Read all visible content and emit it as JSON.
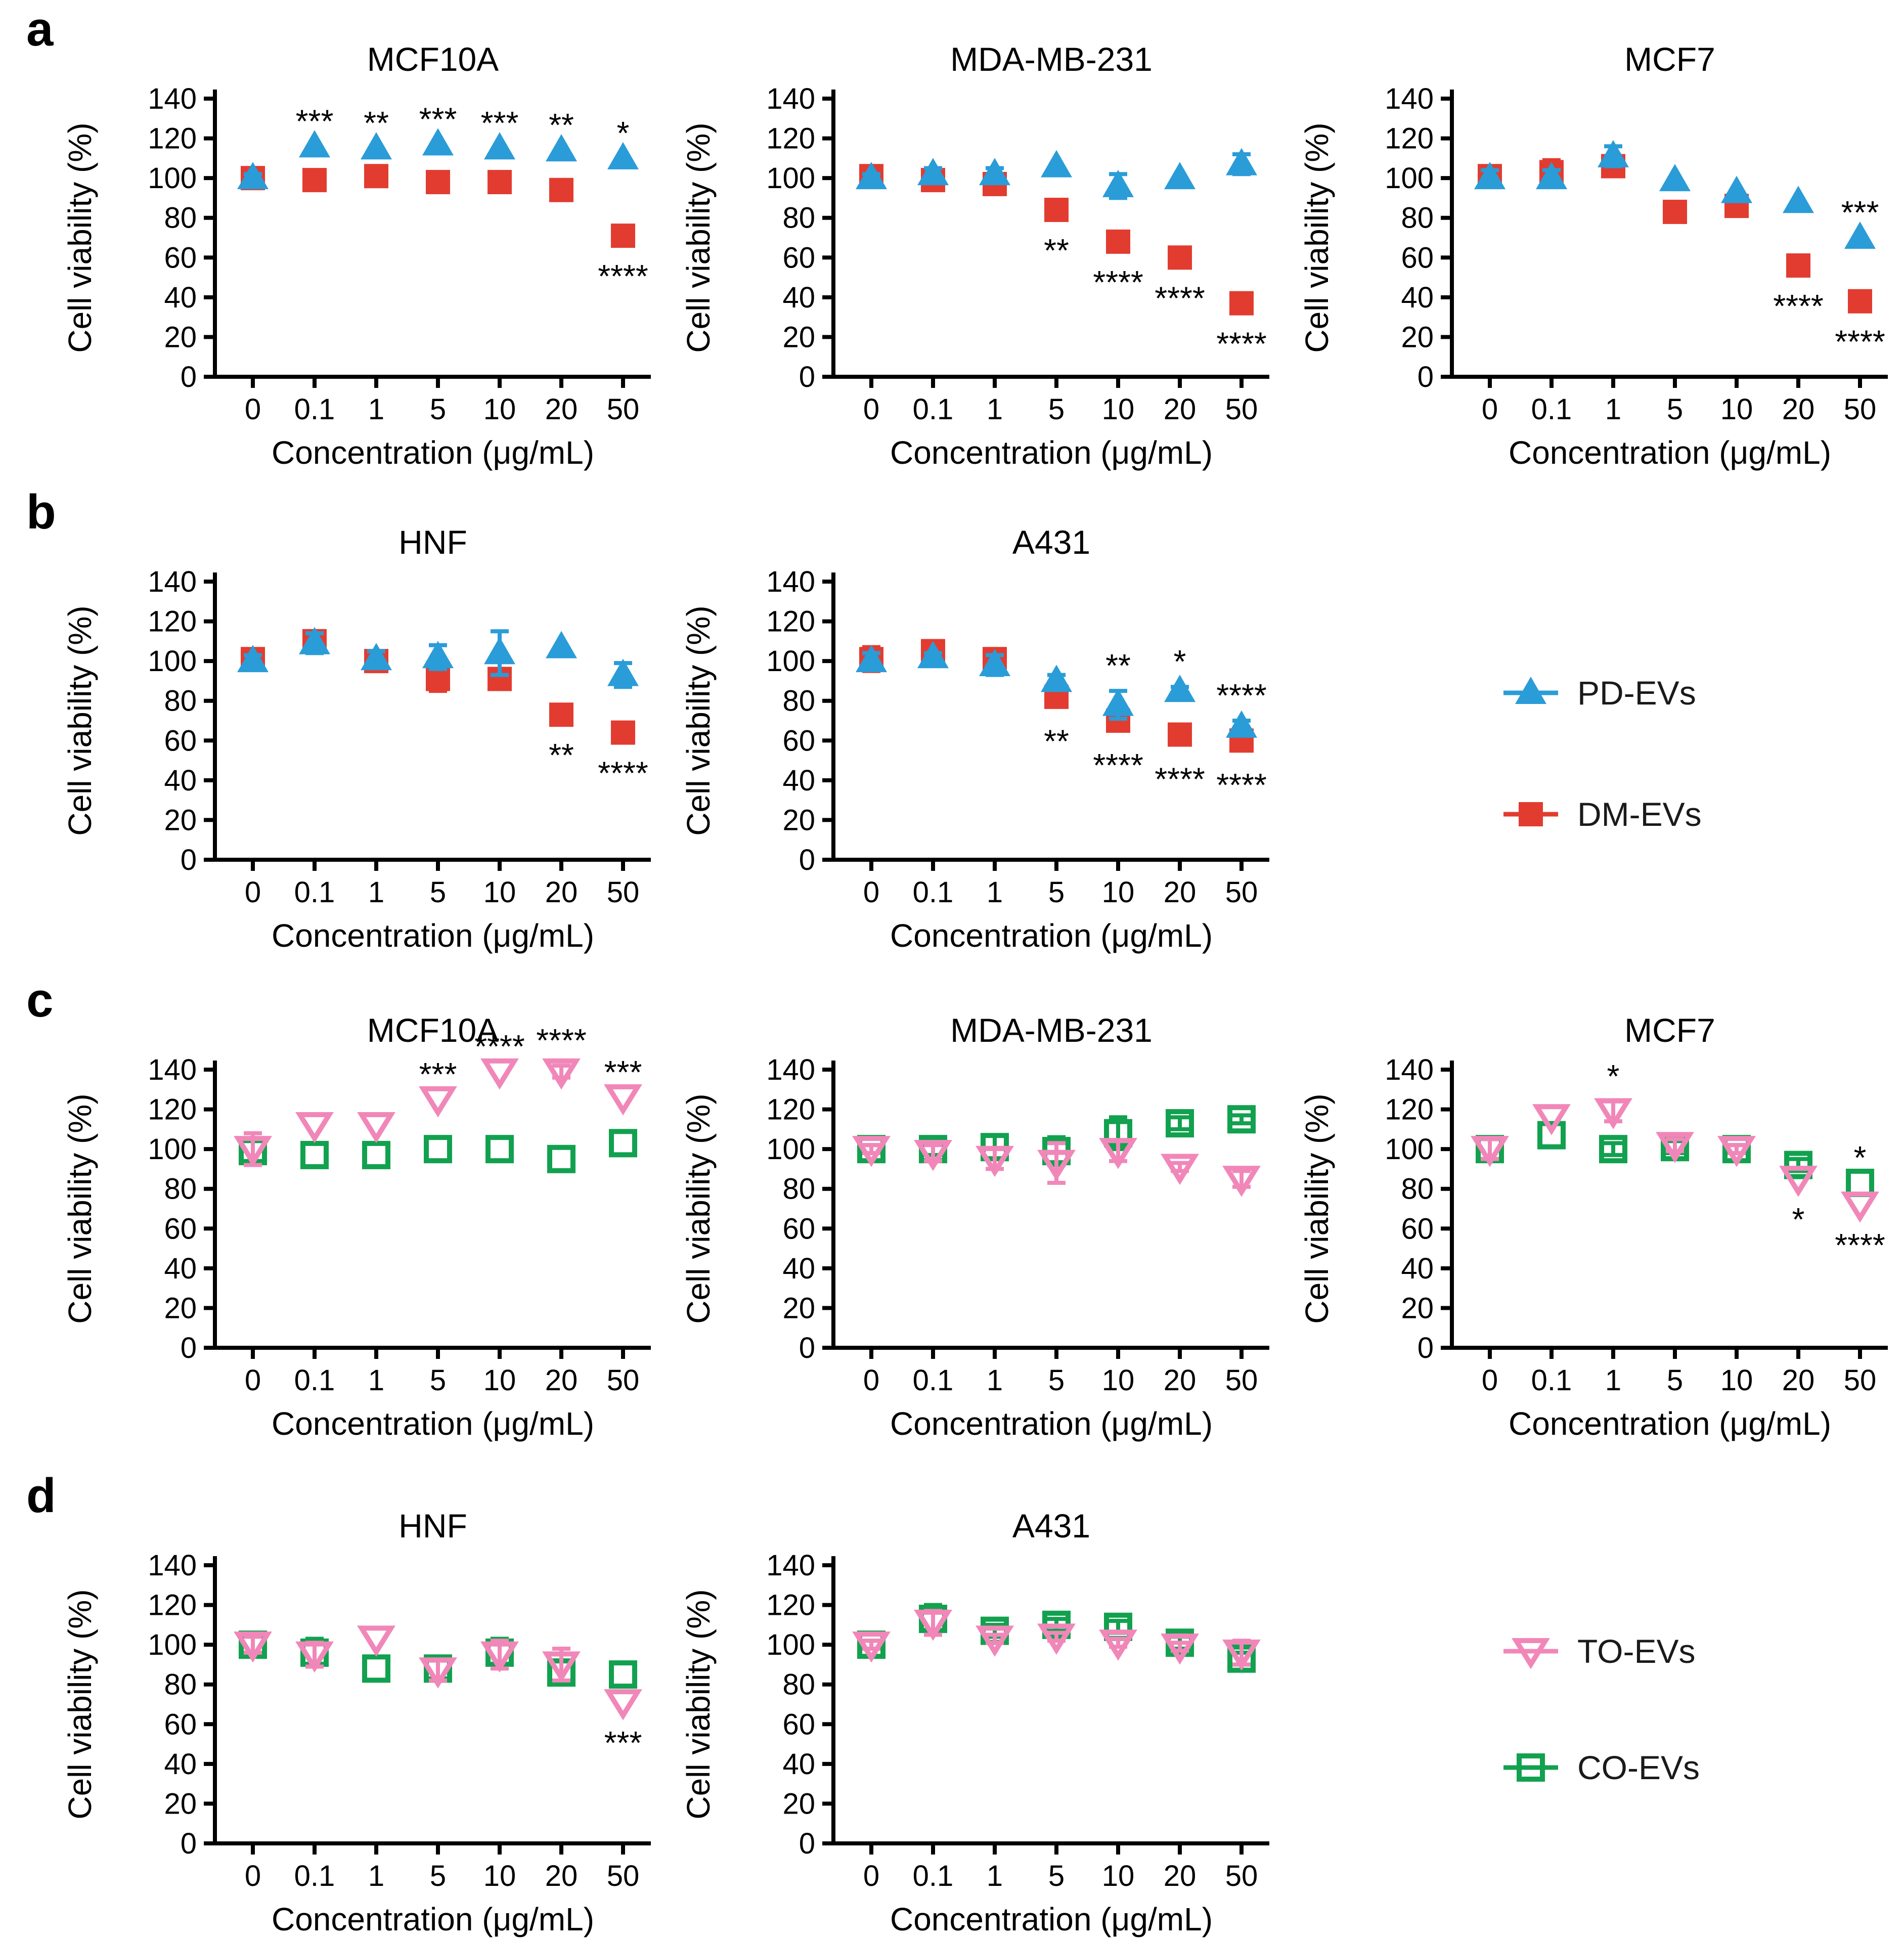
{
  "letters": {
    "a": "a",
    "b": "b",
    "c": "c",
    "d": "d"
  },
  "colors": {
    "pd_blue": "#2A9CD8",
    "dm_red": "#E23C30",
    "to_pink": "#F187B9",
    "co_green": "#12A14F",
    "axis_black": "#000000",
    "background": "#ffffff"
  },
  "legends": [
    {
      "row": "b",
      "items": [
        {
          "label": "PD-EVs",
          "marker": "triangle-filled",
          "color": "#2A9CD8"
        },
        {
          "label": "DM-EVs",
          "marker": "square-filled",
          "color": "#E23C30"
        }
      ]
    },
    {
      "row": "d",
      "items": [
        {
          "label": "TO-EVs",
          "marker": "triangle-open",
          "color": "#F187B9"
        },
        {
          "label": "CO-EVs",
          "marker": "square-open",
          "color": "#12A14F"
        }
      ]
    }
  ],
  "chart_data": [
    {
      "row": "a",
      "type": "scatter",
      "title": "MCF10A",
      "xlabel": "Concentration (μg/mL)",
      "ylabel": "Cell viability (%)",
      "categories": [
        "0",
        "0.1",
        "1",
        "5",
        "10",
        "20",
        "50"
      ],
      "ylim": [
        0,
        140
      ],
      "yticks": [
        0,
        20,
        40,
        60,
        80,
        100,
        120,
        140
      ],
      "series": [
        {
          "name": "PD-EVs",
          "marker": "triangle-filled",
          "color": "#2A9CD8",
          "values": [
            100,
            116,
            115,
            117,
            115,
            114,
            110
          ],
          "errors": [
            2,
            0,
            0,
            0,
            0,
            0,
            0
          ]
        },
        {
          "name": "DM-EVs",
          "marker": "square-filled",
          "color": "#E23C30",
          "values": [
            100,
            99,
            101,
            98,
            98,
            94,
            71
          ],
          "errors": [
            3,
            0,
            0,
            4,
            2,
            0,
            0
          ]
        }
      ],
      "annotations": [
        {
          "series": 0,
          "index": 1,
          "text": "***",
          "side": "above"
        },
        {
          "series": 0,
          "index": 2,
          "text": "**",
          "side": "above"
        },
        {
          "series": 0,
          "index": 3,
          "text": "***",
          "side": "above"
        },
        {
          "series": 0,
          "index": 4,
          "text": "***",
          "side": "above"
        },
        {
          "series": 0,
          "index": 5,
          "text": "**",
          "side": "above"
        },
        {
          "series": 0,
          "index": 6,
          "text": "*",
          "side": "above"
        },
        {
          "series": 1,
          "index": 6,
          "text": "****",
          "side": "below"
        }
      ]
    },
    {
      "row": "a",
      "type": "scatter",
      "title": "MDA-MB-231",
      "xlabel": "Concentration (μg/mL)",
      "ylabel": "Cell viability (%)",
      "categories": [
        "0",
        "0.1",
        "1",
        "5",
        "10",
        "20",
        "50"
      ],
      "ylim": [
        0,
        140
      ],
      "yticks": [
        0,
        20,
        40,
        60,
        80,
        100,
        120,
        140
      ],
      "series": [
        {
          "name": "PD-EVs",
          "marker": "triangle-filled",
          "color": "#2A9CD8",
          "values": [
            100,
            102,
            102,
            106,
            96,
            100,
            107
          ],
          "errors": [
            2,
            3,
            3,
            0,
            6,
            0,
            5
          ]
        },
        {
          "name": "DM-EVs",
          "marker": "square-filled",
          "color": "#E23C30",
          "values": [
            101,
            99,
            97,
            84,
            68,
            60,
            37
          ],
          "errors": [
            2,
            0,
            0,
            0,
            0,
            0,
            0
          ]
        }
      ],
      "annotations": [
        {
          "series": 1,
          "index": 3,
          "text": "**",
          "side": "below"
        },
        {
          "series": 1,
          "index": 4,
          "text": "****",
          "side": "below"
        },
        {
          "series": 1,
          "index": 5,
          "text": "****",
          "side": "below"
        },
        {
          "series": 1,
          "index": 6,
          "text": "****",
          "side": "below"
        }
      ]
    },
    {
      "row": "a",
      "type": "scatter",
      "title": "MCF7",
      "xlabel": "Concentration (μg/mL)",
      "ylabel": "Cell viability (%)",
      "categories": [
        "0",
        "0.1",
        "1",
        "5",
        "10",
        "20",
        "50"
      ],
      "ylim": [
        0,
        140
      ],
      "yticks": [
        0,
        20,
        40,
        60,
        80,
        100,
        120,
        140
      ],
      "series": [
        {
          "name": "PD-EVs",
          "marker": "triangle-filled",
          "color": "#2A9CD8",
          "values": [
            100,
            100,
            111,
            99,
            93,
            88,
            70
          ],
          "errors": [
            4,
            4,
            5,
            0,
            0,
            0,
            0
          ]
        },
        {
          "name": "DM-EVs",
          "marker": "square-filled",
          "color": "#E23C30",
          "values": [
            101,
            103,
            106,
            83,
            86,
            56,
            38
          ],
          "errors": [
            5,
            6,
            4,
            0,
            0,
            0,
            0
          ]
        }
      ],
      "annotations": [
        {
          "series": 0,
          "index": 6,
          "text": "***",
          "side": "above"
        },
        {
          "series": 1,
          "index": 5,
          "text": "****",
          "side": "below"
        },
        {
          "series": 1,
          "index": 6,
          "text": "****",
          "side": "below"
        }
      ]
    },
    {
      "row": "b",
      "type": "scatter",
      "title": "HNF",
      "xlabel": "Concentration (μg/mL)",
      "ylabel": "Cell viability (%)",
      "categories": [
        "0",
        "0.1",
        "1",
        "5",
        "10",
        "20",
        "50"
      ],
      "ylim": [
        0,
        140
      ],
      "yticks": [
        0,
        20,
        40,
        60,
        80,
        100,
        120,
        140
      ],
      "series": [
        {
          "name": "PD-EVs",
          "marker": "triangle-filled",
          "color": "#2A9CD8",
          "values": [
            100,
            109,
            101,
            102,
            104,
            107,
            93
          ],
          "errors": [
            3,
            5,
            4,
            6,
            11,
            0,
            6
          ]
        },
        {
          "name": "DM-EVs",
          "marker": "square-filled",
          "color": "#E23C30",
          "values": [
            101,
            110,
            100,
            91,
            91,
            73,
            64
          ],
          "errors": [
            2,
            3,
            3,
            6,
            4,
            0,
            0
          ]
        }
      ],
      "annotations": [
        {
          "series": 1,
          "index": 5,
          "text": "**",
          "side": "below"
        },
        {
          "series": 1,
          "index": 6,
          "text": "****",
          "side": "below"
        }
      ]
    },
    {
      "row": "b",
      "type": "scatter",
      "title": "A431",
      "xlabel": "Concentration (μg/mL)",
      "ylabel": "Cell viability (%)",
      "categories": [
        "0",
        "0.1",
        "1",
        "5",
        "10",
        "20",
        "50"
      ],
      "ylim": [
        0,
        140
      ],
      "yticks": [
        0,
        20,
        40,
        60,
        80,
        100,
        120,
        140
      ],
      "series": [
        {
          "name": "PD-EVs",
          "marker": "triangle-filled",
          "color": "#2A9CD8",
          "values": [
            100,
            102,
            98,
            90,
            78,
            85,
            67
          ],
          "errors": [
            4,
            2,
            5,
            3,
            7,
            2,
            3
          ]
        },
        {
          "name": "DM-EVs",
          "marker": "square-filled",
          "color": "#E23C30",
          "values": [
            101,
            105,
            101,
            82,
            70,
            63,
            60
          ],
          "errors": [
            6,
            2,
            3,
            2,
            2,
            2,
            2
          ]
        }
      ],
      "annotations": [
        {
          "series": 1,
          "index": 3,
          "text": "**",
          "side": "below"
        },
        {
          "series": 0,
          "index": 4,
          "text": "**",
          "side": "above"
        },
        {
          "series": 1,
          "index": 4,
          "text": "****",
          "side": "below"
        },
        {
          "series": 0,
          "index": 5,
          "text": "*",
          "side": "above"
        },
        {
          "series": 1,
          "index": 5,
          "text": "****",
          "side": "below"
        },
        {
          "series": 0,
          "index": 6,
          "text": "****",
          "side": "above"
        },
        {
          "series": 1,
          "index": 6,
          "text": "****",
          "side": "below"
        }
      ]
    },
    {
      "row": "c",
      "type": "scatter",
      "title": "MCF10A",
      "xlabel": "Concentration (μg/mL)",
      "ylabel": "Cell viability (%)",
      "categories": [
        "0",
        "0.1",
        "1",
        "5",
        "10",
        "20",
        "50"
      ],
      "ylim": [
        0,
        140
      ],
      "yticks": [
        0,
        20,
        40,
        60,
        80,
        100,
        120,
        140
      ],
      "series": [
        {
          "name": "TO-EVs",
          "marker": "triangle-open",
          "color": "#F187B9",
          "values": [
            100,
            112,
            112,
            125,
            139,
            139,
            126
          ],
          "errors": [
            8,
            0,
            0,
            0,
            0,
            3,
            0
          ]
        },
        {
          "name": "CO-EVs",
          "marker": "square-open",
          "color": "#12A14F",
          "values": [
            99,
            97,
            97,
            100,
            100,
            95,
            103
          ],
          "errors": [
            5,
            0,
            0,
            0,
            0,
            0,
            0
          ]
        }
      ],
      "annotations": [
        {
          "series": 0,
          "index": 3,
          "text": "***",
          "side": "above"
        },
        {
          "series": 0,
          "index": 4,
          "text": "****",
          "side": "above"
        },
        {
          "series": 0,
          "index": 5,
          "text": "****",
          "side": "above"
        },
        {
          "series": 0,
          "index": 6,
          "text": "***",
          "side": "above"
        }
      ]
    },
    {
      "row": "c",
      "type": "scatter",
      "title": "MDA-MB-231",
      "xlabel": "Concentration (μg/mL)",
      "ylabel": "Cell viability (%)",
      "categories": [
        "0",
        "0.1",
        "1",
        "5",
        "10",
        "20",
        "50"
      ],
      "ylim": [
        0,
        140
      ],
      "yticks": [
        0,
        20,
        40,
        60,
        80,
        100,
        120,
        140
      ],
      "series": [
        {
          "name": "TO-EVs",
          "marker": "triangle-open",
          "color": "#F187B9",
          "values": [
            100,
            98,
            95,
            93,
            99,
            91,
            85
          ],
          "errors": [
            2,
            4,
            5,
            10,
            5,
            2,
            4
          ]
        },
        {
          "name": "CO-EVs",
          "marker": "square-open",
          "color": "#12A14F",
          "values": [
            100,
            100,
            101,
            99,
            108,
            113,
            115
          ],
          "errors": [
            2,
            3,
            6,
            7,
            8,
            3,
            2
          ]
        }
      ],
      "annotations": []
    },
    {
      "row": "c",
      "type": "scatter",
      "title": "MCF7",
      "xlabel": "Concentration (μg/mL)",
      "ylabel": "Cell viability (%)",
      "categories": [
        "0",
        "0.1",
        "1",
        "5",
        "10",
        "20",
        "50"
      ],
      "ylim": [
        0,
        140
      ],
      "yticks": [
        0,
        20,
        40,
        60,
        80,
        100,
        120,
        140
      ],
      "series": [
        {
          "name": "TO-EVs",
          "marker": "triangle-open",
          "color": "#F187B9",
          "values": [
            100,
            116,
            119,
            102,
            100,
            85,
            72
          ],
          "errors": [
            5,
            0,
            5,
            3,
            2,
            0,
            0
          ]
        },
        {
          "name": "CO-EVs",
          "marker": "square-open",
          "color": "#12A14F",
          "values": [
            100,
            107,
            100,
            101,
            100,
            92,
            83
          ],
          "errors": [
            5,
            0,
            3,
            3,
            2,
            3,
            0
          ]
        }
      ],
      "annotations": [
        {
          "series": 0,
          "index": 2,
          "text": "*",
          "side": "above"
        },
        {
          "series": 0,
          "index": 5,
          "text": "*",
          "side": "below"
        },
        {
          "series": 1,
          "index": 6,
          "text": "*",
          "side": "above"
        },
        {
          "series": 0,
          "index": 6,
          "text": "****",
          "side": "below"
        }
      ]
    },
    {
      "row": "d",
      "type": "scatter",
      "title": "HNF",
      "xlabel": "Concentration (μg/mL)",
      "ylabel": "Cell viability (%)",
      "categories": [
        "0",
        "0.1",
        "1",
        "5",
        "10",
        "20",
        "50"
      ],
      "ylim": [
        0,
        140
      ],
      "yticks": [
        0,
        20,
        40,
        60,
        80,
        100,
        120,
        140
      ],
      "series": [
        {
          "name": "TO-EVs",
          "marker": "triangle-open",
          "color": "#F187B9",
          "values": [
            100,
            95,
            103,
            87,
            95,
            90,
            71
          ],
          "errors": [
            4,
            6,
            0,
            5,
            7,
            8,
            0
          ]
        },
        {
          "name": "CO-EVs",
          "marker": "square-open",
          "color": "#12A14F",
          "values": [
            100,
            96,
            88,
            88,
            96,
            86,
            85
          ],
          "errors": [
            5,
            7,
            0,
            5,
            7,
            6,
            0
          ]
        }
      ],
      "annotations": [
        {
          "series": 0,
          "index": 6,
          "text": "***",
          "side": "below"
        }
      ]
    },
    {
      "row": "d",
      "type": "scatter",
      "title": "A431",
      "xlabel": "Concentration (μg/mL)",
      "ylabel": "Cell viability (%)",
      "categories": [
        "0",
        "0.1",
        "1",
        "5",
        "10",
        "20",
        "50"
      ],
      "ylim": [
        0,
        140
      ],
      "yticks": [
        0,
        20,
        40,
        60,
        80,
        100,
        120,
        140
      ],
      "series": [
        {
          "name": "TO-EVs",
          "marker": "triangle-open",
          "color": "#F187B9",
          "values": [
            100,
            111,
            103,
            104,
            101,
            99,
            96
          ],
          "errors": [
            2,
            6,
            2,
            2,
            2,
            2,
            6
          ]
        },
        {
          "name": "CO-EVs",
          "marker": "square-open",
          "color": "#12A14F",
          "values": [
            100,
            113,
            107,
            110,
            109,
            101,
            93
          ],
          "errors": [
            2,
            7,
            3,
            3,
            3,
            3,
            3
          ]
        }
      ],
      "annotations": []
    }
  ]
}
